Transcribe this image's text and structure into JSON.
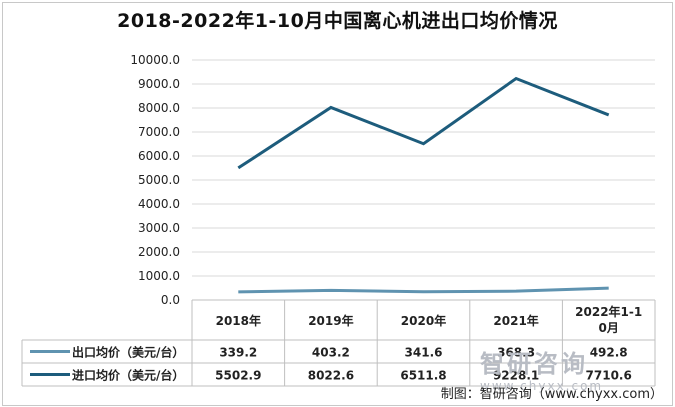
{
  "chart_data": {
    "type": "line",
    "title": "2018-2022年1-10月中国离心机进出口均价情况",
    "categories": [
      "2018年",
      "2019年",
      "2020年",
      "2021年",
      "2022年1-10月"
    ],
    "series": [
      {
        "name": "出口均价（美元/台）",
        "values": [
          339.2,
          403.2,
          341.6,
          368.3,
          492.8
        ],
        "color": "#5f93b0"
      },
      {
        "name": "进口均价（美元/台）",
        "values": [
          5502.9,
          8022.6,
          6511.8,
          9228.1,
          7710.6
        ],
        "color": "#1d5c7c"
      }
    ],
    "series_display": [
      [
        "339.2",
        "403.2",
        "341.6",
        "368.3",
        "492.8"
      ],
      [
        "5502.9",
        "8022.6",
        "6511.8",
        "9228.1",
        "7710.6"
      ]
    ],
    "ylim": [
      0,
      10000
    ],
    "yticks": [
      0,
      1000,
      2000,
      3000,
      4000,
      5000,
      6000,
      7000,
      8000,
      9000,
      10000
    ],
    "ytick_labels": [
      "0.0",
      "1000.0",
      "2000.0",
      "3000.0",
      "4000.0",
      "5000.0",
      "6000.0",
      "7000.0",
      "8000.0",
      "9000.0",
      "10000.0"
    ],
    "grid": true,
    "legend": "data-table",
    "data_table": true
  },
  "credit": "制图：智研咨询（www.chyxx.com）",
  "watermark": {
    "main": "智研咨询",
    "url": "www.chyxx.com"
  }
}
